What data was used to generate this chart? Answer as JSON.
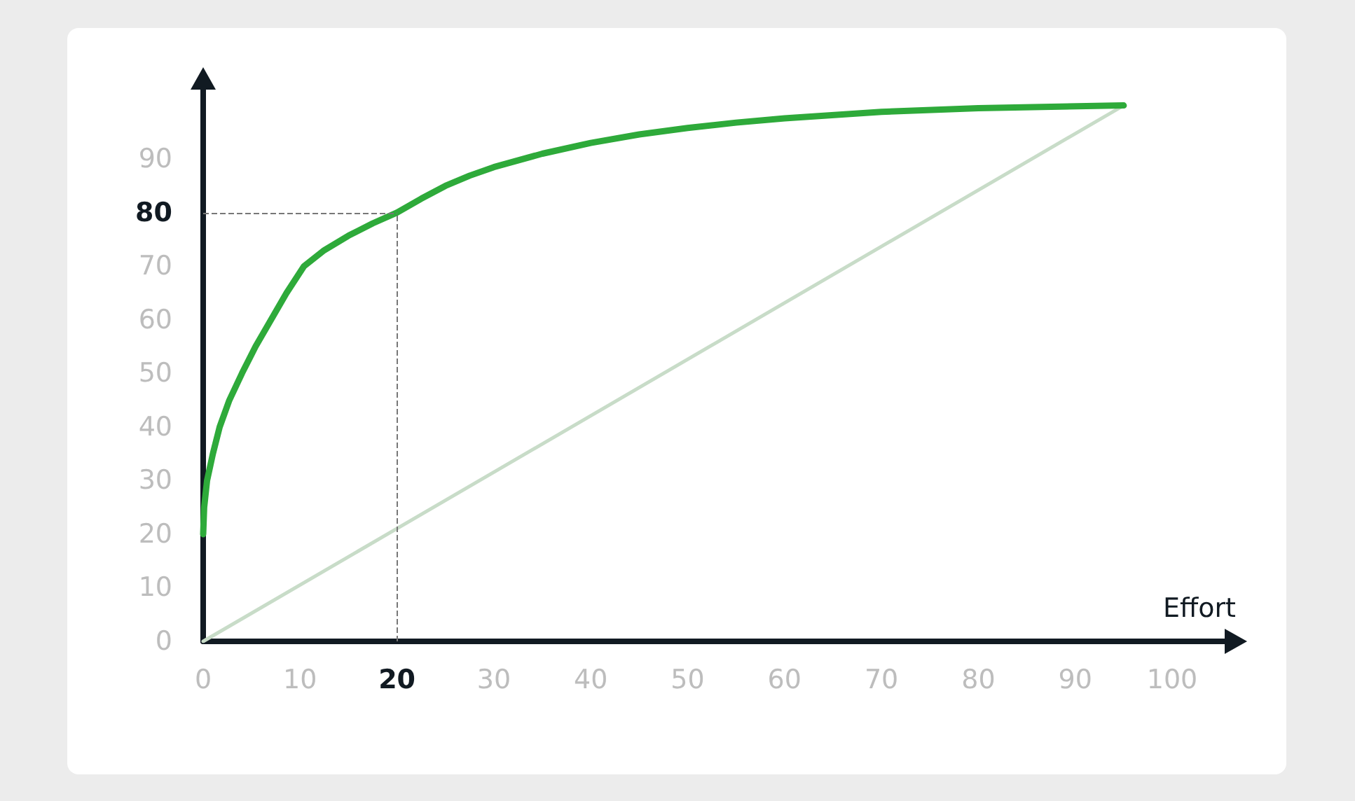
{
  "chart_data": {
    "type": "line",
    "xlabel": "Effort",
    "xlim": [
      0,
      106
    ],
    "xticks": [
      0,
      10,
      20,
      30,
      40,
      50,
      60,
      70,
      80,
      90,
      100
    ],
    "ylim": [
      0,
      104
    ],
    "yticks": [
      0,
      10,
      20,
      30,
      40,
      50,
      60,
      70,
      80,
      90
    ],
    "grid": false,
    "marker": "none",
    "line_style": "solid",
    "series": [
      {
        "color": "#2eaa3a",
        "x": [
          0,
          0.1,
          0.4,
          1,
          1.7,
          2.7,
          4,
          5.4,
          7,
          8.6,
          10.4,
          12.5,
          15,
          17.5,
          20,
          22.5,
          25,
          27.5,
          30,
          35,
          40,
          45,
          50,
          55,
          60,
          70,
          80,
          95
        ],
        "values": [
          20,
          25,
          30,
          35,
          40,
          45,
          50,
          55,
          60,
          65,
          70,
          73,
          75.7,
          78,
          80,
          82.6,
          85,
          86.9,
          88.5,
          91,
          93,
          94.6,
          95.8,
          96.8,
          97.6,
          98.8,
          99.5,
          100
        ]
      },
      {
        "color": "#c8dcc8",
        "x": [
          0,
          95
        ],
        "values": [
          0,
          100
        ]
      }
    ],
    "ref_lines": [
      {
        "axis": "y",
        "value": 80,
        "color": "#777777",
        "line_style": "dashed"
      },
      {
        "axis": "x",
        "value": 20,
        "color": "#777777",
        "line_style": "dashed"
      }
    ]
  }
}
